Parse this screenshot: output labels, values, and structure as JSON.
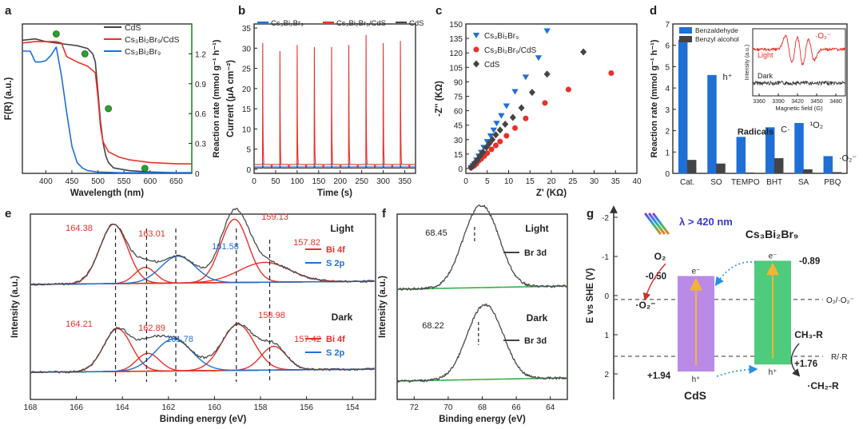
{
  "colors": {
    "red": "#e8302a",
    "blue": "#1f6fd6",
    "dark": "#444444",
    "green": "#2e9e2e",
    "fit_green": "#36b04a",
    "purple": "#b98be6",
    "band_green": "#4ecb7b",
    "arrow_yellow": "#f5b335",
    "dotted_blue": "#2a8fe0"
  },
  "chart_data": [
    {
      "panel": "a",
      "type": "line",
      "xlabel": "Wavelength (nm)",
      "ylabel": "F(R) (a.u.)",
      "y2label": "Reaction rate (mmol g⁻¹ h⁻¹)",
      "xlim": [
        355,
        680
      ],
      "ylim": [
        0,
        1.1
      ],
      "y2lim": [
        0,
        1.5
      ],
      "xticks": [
        400,
        450,
        500,
        550,
        600,
        650
      ],
      "y2ticks": [
        0.0,
        0.3,
        0.6,
        0.9,
        1.2
      ],
      "legend": [
        "CdS",
        "Cs₃Bi₂Br₉/CdS",
        "Cs₃Bi₂Br₉"
      ],
      "series": [
        {
          "name": "CdS",
          "color": "dark",
          "x": [
            355,
            380,
            400,
            420,
            440,
            460,
            480,
            490,
            495,
            500,
            505,
            510,
            515,
            520,
            530,
            560,
            600,
            650,
            680
          ],
          "y": [
            0.98,
            0.99,
            0.97,
            0.96,
            0.95,
            0.94,
            0.92,
            0.88,
            0.82,
            0.6,
            0.38,
            0.22,
            0.13,
            0.08,
            0.04,
            0.02,
            0.01,
            0.005,
            0.005
          ]
        },
        {
          "name": "Cs₃Bi₂Br₉/CdS",
          "color": "red",
          "x": [
            355,
            380,
            400,
            420,
            430,
            440,
            460,
            480,
            495,
            500,
            505,
            510,
            520,
            540,
            560,
            600,
            650,
            680
          ],
          "y": [
            0.96,
            0.97,
            0.97,
            0.97,
            0.96,
            0.86,
            0.82,
            0.79,
            0.74,
            0.56,
            0.34,
            0.23,
            0.16,
            0.12,
            0.1,
            0.08,
            0.07,
            0.07
          ]
        },
        {
          "name": "Cs₃Bi₂Br₉",
          "color": "blue",
          "x": [
            355,
            370,
            380,
            390,
            400,
            410,
            420,
            430,
            440,
            450,
            460,
            470,
            480,
            500,
            540,
            600,
            650,
            680
          ],
          "y": [
            0.9,
            0.9,
            0.82,
            0.82,
            0.83,
            0.87,
            0.93,
            0.72,
            0.45,
            0.2,
            0.08,
            0.04,
            0.02,
            0.01,
            0.005,
            0.005,
            0.005,
            0.005
          ]
        }
      ],
      "scatter": {
        "name": "Reaction rate",
        "color": "green",
        "x": [
          420,
          475,
          520,
          590
        ],
        "y": [
          1.4,
          1.2,
          0.65,
          0.05
        ]
      }
    },
    {
      "panel": "b",
      "type": "line",
      "xlabel": "Time (s)",
      "ylabel": "Current (μA cm⁻²)",
      "xlim": [
        0,
        375
      ],
      "ylim": [
        -1,
        36
      ],
      "xticks": [
        0,
        50,
        100,
        150,
        200,
        250,
        300,
        350
      ],
      "yticks": [
        0,
        5,
        10,
        15,
        20,
        25,
        30,
        35
      ],
      "legend": [
        "Cs₃Bi₂Br₉",
        "Cs₃Bi₂Br₉/CdS",
        "CdS"
      ],
      "pulse_times": [
        20,
        60,
        100,
        140,
        180,
        220,
        260,
        300,
        340
      ],
      "pulse_peaks": [
        30,
        28,
        29.5,
        29,
        29,
        29.5,
        32,
        30,
        30.5
      ],
      "baseline_red": 1.2,
      "baseline_blue": 0.6,
      "baseline_dark": 0.3
    },
    {
      "panel": "c",
      "type": "scatter",
      "xlabel": "Z' (KΩ)",
      "ylabel": "-Z'' (KΩ)",
      "xlim": [
        0,
        40
      ],
      "ylim": [
        -5,
        150
      ],
      "xticks": [
        0,
        5,
        10,
        15,
        20,
        25,
        30,
        35,
        40
      ],
      "yticks": [
        0,
        15,
        30,
        45,
        60,
        75,
        90,
        105,
        120,
        135,
        150
      ],
      "legend": [
        "Cs₃Bi₂Br₉",
        "Cs₃Bi₂Br₉/CdS",
        "CdS"
      ],
      "series": [
        {
          "name": "Cs₃Bi₂Br₉",
          "color": "blue",
          "marker": "triangle",
          "x": [
            1.2,
            1.6,
            2.0,
            2.5,
            3.0,
            3.6,
            4.2,
            5.0,
            5.8,
            6.5,
            7.2,
            8.3,
            9.5,
            11.5,
            14,
            17,
            19
          ],
          "y": [
            1,
            3,
            5,
            9,
            13,
            17,
            22,
            28,
            34,
            40,
            47,
            55,
            65,
            80,
            95,
            115,
            143
          ]
        },
        {
          "name": "Cs₃Bi₂Br₉/CdS",
          "color": "red",
          "marker": "circle",
          "x": [
            1.2,
            1.6,
            2.0,
            2.5,
            3.0,
            3.6,
            4.3,
            5.0,
            6.0,
            7.0,
            8.0,
            9.5,
            11.5,
            14,
            18.5,
            24,
            34
          ],
          "y": [
            1,
            2,
            3,
            5,
            8,
            10,
            13,
            16,
            20,
            24,
            28,
            34,
            42,
            52,
            68,
            82,
            99
          ]
        },
        {
          "name": "CdS",
          "color": "dark",
          "marker": "diamond",
          "x": [
            1.2,
            1.6,
            2.1,
            2.7,
            3.3,
            4.0,
            4.8,
            5.5,
            6.2,
            7.0,
            8.0,
            9.2,
            11,
            13,
            15.5,
            19,
            27.5
          ],
          "y": [
            1,
            3,
            6,
            9,
            13,
            17,
            22,
            26,
            30,
            35,
            40,
            46,
            53,
            63,
            79,
            98,
            121
          ]
        }
      ]
    },
    {
      "panel": "d",
      "type": "bar",
      "xlabel": "",
      "ylabel": "Reaction rate (mmol g⁻¹ h⁻¹)",
      "ylim": [
        0,
        7
      ],
      "yticks": [
        0,
        1,
        2,
        3,
        4,
        5,
        6,
        7
      ],
      "categories": [
        "Cat.",
        "SO",
        "TEMPO",
        "BHT",
        "SA",
        "PBQ"
      ],
      "series": [
        {
          "name": "Benzaldehyde",
          "color": "blue",
          "values": [
            6.25,
            4.6,
            1.7,
            2.15,
            2.35,
            0.8
          ]
        },
        {
          "name": "Benzyl alcohol",
          "color": "dark",
          "values": [
            0.62,
            0.45,
            0.03,
            0.7,
            0.18,
            0.05
          ]
        }
      ],
      "bar_labels": [
        "h⁺",
        "Radicals",
        "C·",
        "¹O₂",
        "·O₂⁻"
      ],
      "inset": {
        "xlabel": "Magnetic field (G)",
        "ylabel": "Intensity (a.u.)",
        "xticks": [
          3360,
          3390,
          3420,
          3450,
          3480
        ],
        "light_label": "Light",
        "dark_label": "Dark",
        "species": "·O₂⁻"
      }
    },
    {
      "panel": "e",
      "type": "line",
      "xlabel": "Binding energy (eV)",
      "ylabel": "Intensity (a.u.)",
      "xlim": [
        168,
        153
      ],
      "xticks": [
        168,
        166,
        164,
        162,
        160,
        158,
        156,
        154
      ],
      "light": {
        "label": "Light",
        "peaks": [
          "164.38",
          "163.01",
          "161.58",
          "159.13",
          "157.82"
        ]
      },
      "dark": {
        "label": "Dark",
        "peaks": [
          "164.21",
          "162.89",
          "161.78",
          "158.98",
          "157.42"
        ]
      },
      "legend": [
        "Bi 4f",
        "S 2p"
      ]
    },
    {
      "panel": "f",
      "type": "line",
      "xlabel": "Binding energy (eV)",
      "ylabel": "Intensity (a.u.)",
      "xlim": [
        73,
        63
      ],
      "xticks": [
        72,
        70,
        68,
        66,
        64
      ],
      "light": {
        "label": "Light",
        "peak": "68.45"
      },
      "dark": {
        "label": "Dark",
        "peak": "68.22"
      },
      "legend": [
        "Br 3d"
      ]
    },
    {
      "panel": "g",
      "type": "diagram",
      "ylabel": "E vs SHE (V)",
      "yticks": [
        "-2",
        "-1",
        "0",
        "1",
        "2"
      ],
      "light_text": "λ > 420 nm",
      "material_right": "Cs₃Bi₂Br₉",
      "material_left": "CdS",
      "cb_left": "-0.50",
      "vb_left": "+1.94",
      "cb_right": "-0.89",
      "vb_right": "+1.76",
      "o2": "O₂",
      "o2_radical": "·O₂⁻",
      "redox_o2": "O₂/·O₂⁻",
      "redox_r": "R/·R",
      "substrate": "CH₃-R",
      "product": "·CH₂-R",
      "electron": "e⁻",
      "hole": "h⁺"
    }
  ],
  "panel_labels": [
    "a",
    "b",
    "c",
    "d",
    "e",
    "f",
    "g"
  ]
}
